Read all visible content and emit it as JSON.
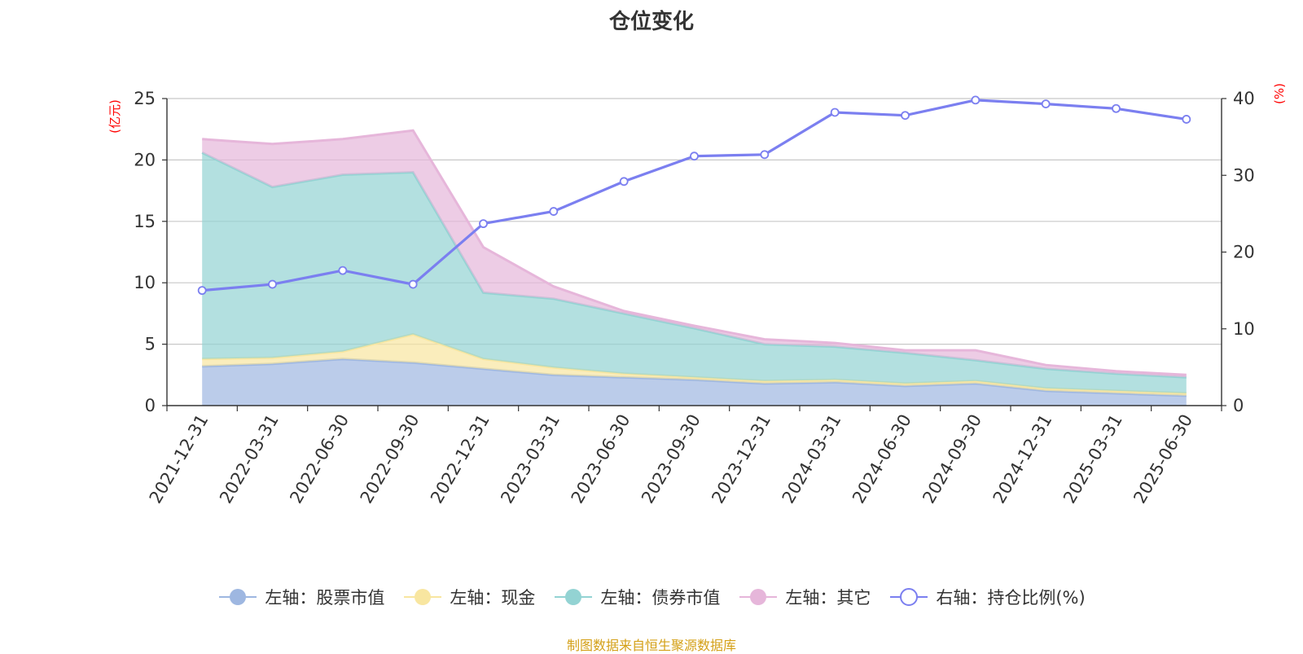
{
  "title": "仓位变化",
  "source_note": "制图数据来自恒生聚源数据库",
  "colors": {
    "stock": "#9eb7e1",
    "cash": "#f8e6a0",
    "bond": "#93d3d3",
    "other": "#e6b6da",
    "ratio": "#7b7ff0",
    "axis_unit": "#ff0000",
    "grid": "#c8c8c8",
    "axis": "#333333"
  },
  "chart_data": {
    "type": "area",
    "categories": [
      "2021-12-31",
      "2022-03-31",
      "2022-06-30",
      "2022-09-30",
      "2022-12-31",
      "2023-03-31",
      "2023-06-30",
      "2023-09-30",
      "2023-12-31",
      "2024-03-31",
      "2024-06-30",
      "2024-09-30",
      "2024-12-31",
      "2025-03-31",
      "2025-06-30"
    ],
    "left_axis": {
      "unit": "(亿元)",
      "min": 0,
      "max": 25,
      "ticks": [
        "0",
        "5",
        "10",
        "15",
        "20",
        "25"
      ]
    },
    "right_axis": {
      "unit": "(%)",
      "min": 0,
      "max": 40,
      "ticks": [
        "0",
        "10",
        "20",
        "30",
        "40"
      ]
    },
    "series": [
      {
        "name": "左轴：股票市值",
        "axis": "left",
        "stacked": true,
        "color_key": "stock",
        "values": [
          3.2,
          3.4,
          3.8,
          3.5,
          3.0,
          2.5,
          2.3,
          2.1,
          1.8,
          1.9,
          1.6,
          1.8,
          1.2,
          1.0,
          0.8
        ]
      },
      {
        "name": "左轴：现金",
        "axis": "left",
        "stacked": true,
        "color_key": "cash",
        "values": [
          0.6,
          0.5,
          0.6,
          2.3,
          0.8,
          0.6,
          0.3,
          0.2,
          0.2,
          0.2,
          0.2,
          0.2,
          0.2,
          0.2,
          0.2
        ]
      },
      {
        "name": "左轴：债券市值",
        "axis": "left",
        "stacked": true,
        "color_key": "bond",
        "values": [
          16.8,
          13.9,
          14.4,
          13.2,
          5.4,
          5.6,
          4.9,
          4.0,
          3.0,
          2.7,
          2.5,
          1.7,
          1.6,
          1.4,
          1.3
        ]
      },
      {
        "name": "左轴：其它",
        "axis": "left",
        "stacked": true,
        "color_key": "other",
        "values": [
          1.1,
          3.5,
          2.9,
          3.4,
          3.7,
          1.0,
          0.2,
          0.2,
          0.4,
          0.3,
          0.2,
          0.8,
          0.3,
          0.2,
          0.2
        ]
      },
      {
        "name": "右轴：持仓比例(%)",
        "axis": "right",
        "stacked": false,
        "color_key": "ratio",
        "values": [
          15.0,
          15.8,
          17.6,
          15.8,
          23.7,
          25.3,
          29.2,
          32.5,
          32.7,
          38.2,
          37.8,
          39.8,
          39.3,
          38.7,
          37.3
        ]
      }
    ]
  }
}
